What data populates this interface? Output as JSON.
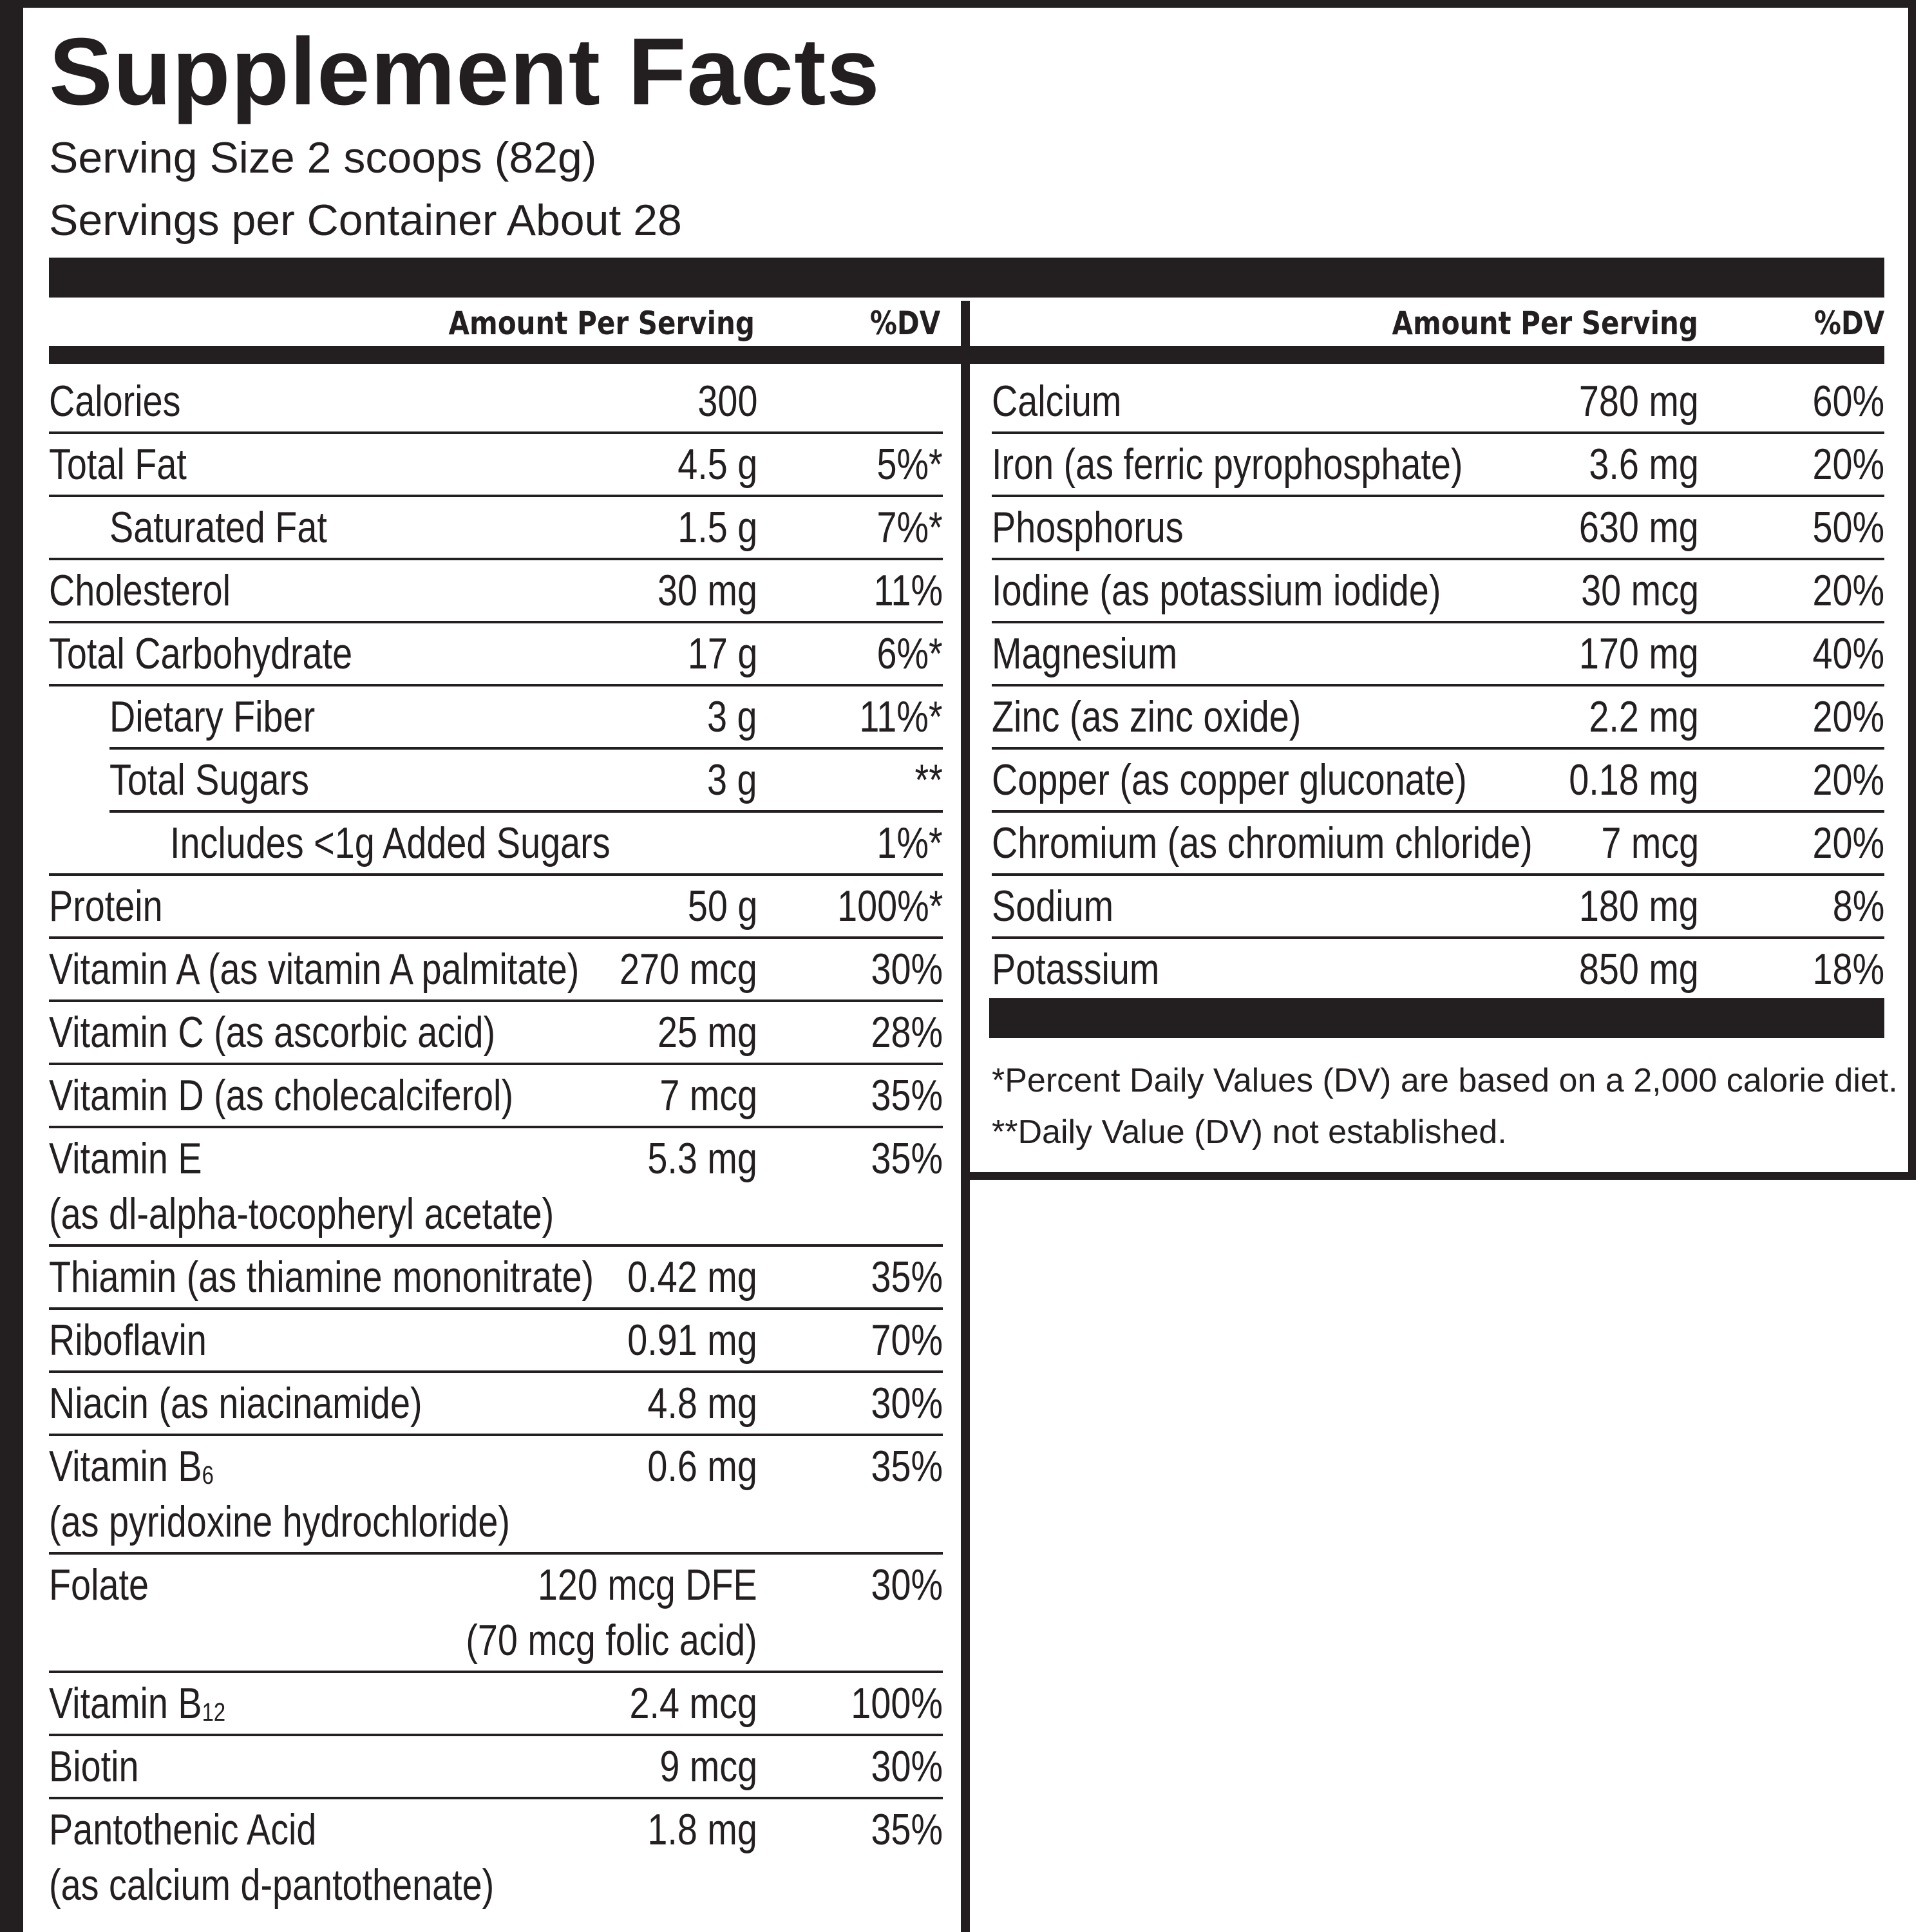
{
  "title": "Supplement Facts",
  "serving_size": "Serving Size 2 scoops (82g)",
  "servings_per_container": "Servings per Container About 28",
  "headers": {
    "amount": "Amount Per Serving",
    "dv": "%DV"
  },
  "left_rows": [
    {
      "label": "Calories",
      "amount": "300",
      "dv": "",
      "indent": 0
    },
    {
      "label": "Total Fat",
      "amount": "4.5 g",
      "dv": "5%*",
      "indent": 0
    },
    {
      "label": "Saturated Fat",
      "amount": "1.5 g",
      "dv": "7%*",
      "indent": 1
    },
    {
      "label": "Cholesterol",
      "amount": "30 mg",
      "dv": "11%",
      "indent": 0
    },
    {
      "label": "Total Carbohydrate",
      "amount": "17 g",
      "dv": "6%*",
      "indent": 0
    },
    {
      "label": "Dietary Fiber",
      "amount": "3 g",
      "dv": "11%*",
      "indent": 1
    },
    {
      "label": "Total Sugars",
      "amount": "3 g",
      "dv": "**",
      "indent": 1
    },
    {
      "label": "Includes <1g Added Sugars",
      "amount": "",
      "dv": "1%*",
      "indent": 2
    },
    {
      "label": "Protein",
      "amount": "50 g",
      "dv": "100%*",
      "indent": 0
    },
    {
      "label": "Vitamin A (as vitamin A palmitate)",
      "amount": "270 mcg",
      "dv": "30%",
      "indent": 0
    },
    {
      "label": "Vitamin C (as ascorbic acid)",
      "amount": "25 mg",
      "dv": "28%",
      "indent": 0
    },
    {
      "label": "Vitamin D (as cholecalciferol)",
      "amount": "7 mcg",
      "dv": "35%",
      "indent": 0
    },
    {
      "label": "Vitamin E",
      "label2": "(as dl-alpha-tocopheryl acetate)",
      "amount": "5.3 mg",
      "dv": "35%",
      "indent": 0
    },
    {
      "label": "Thiamin (as thiamine mononitrate)",
      "amount": "0.42 mg",
      "dv": "35%",
      "indent": 0
    },
    {
      "label": "Riboflavin",
      "amount": "0.91 mg",
      "dv": "70%",
      "indent": 0
    },
    {
      "label": "Niacin (as niacinamide)",
      "amount": "4.8 mg",
      "dv": "30%",
      "indent": 0
    },
    {
      "label": "Vitamin B",
      "sub": "6",
      "label2": "(as pyridoxine hydrochloride)",
      "amount": "0.6 mg",
      "dv": "35%",
      "indent": 0
    },
    {
      "label": "Folate",
      "amount": "120 mcg DFE",
      "amount2": "(70 mcg folic acid)",
      "dv": "30%",
      "indent": 0
    },
    {
      "label": "Vitamin B",
      "sub": "12",
      "amount": "2.4 mcg",
      "dv": "100%",
      "indent": 0
    },
    {
      "label": "Biotin",
      "amount": "9 mcg",
      "dv": "30%",
      "indent": 0
    },
    {
      "label": "Pantothenic Acid",
      "label2": "(as calcium d-pantothenate)",
      "amount": "1.8 mg",
      "dv": "35%",
      "indent": 0
    }
  ],
  "right_rows": [
    {
      "label": "Calcium",
      "amount": "780 mg",
      "dv": "60%"
    },
    {
      "label": "Iron (as ferric pyrophosphate)",
      "amount": "3.6 mg",
      "dv": "20%"
    },
    {
      "label": "Phosphorus",
      "amount": "630 mg",
      "dv": "50%"
    },
    {
      "label": "Iodine (as potassium iodide)",
      "amount": "30 mcg",
      "dv": "20%"
    },
    {
      "label": "Magnesium",
      "amount": "170 mg",
      "dv": "40%"
    },
    {
      "label": "Zinc (as zinc oxide)",
      "amount": "2.2 mg",
      "dv": "20%"
    },
    {
      "label": "Copper (as copper gluconate)",
      "amount": "0.18 mg",
      "dv": "20%"
    },
    {
      "label": "Chromium (as chromium chloride)",
      "amount": "7 mcg",
      "dv": "20%"
    },
    {
      "label": "Sodium",
      "amount": "180 mg",
      "dv": "8%"
    },
    {
      "label": "Potassium",
      "amount": "850 mg",
      "dv": "18%"
    }
  ],
  "footnotes": [
    "*Percent Daily Values (DV) are based on a 2,000 calorie diet.",
    "**Daily Value (DV) not established."
  ]
}
